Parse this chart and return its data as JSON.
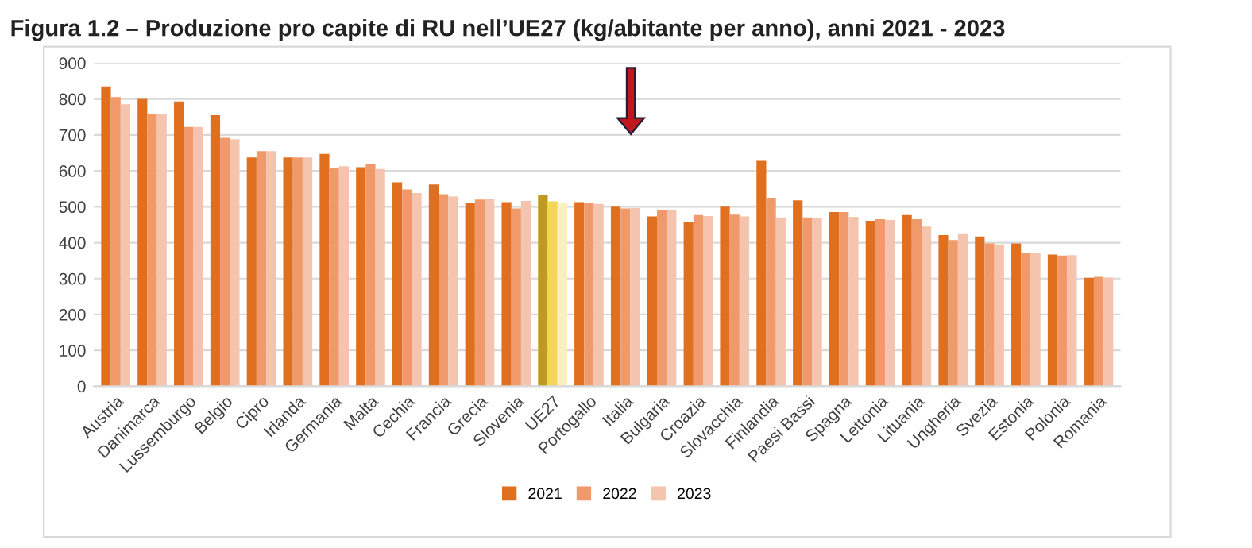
{
  "chart_data": {
    "type": "bar",
    "title": "Figura 1.2 – Produzione pro capite di RU nell’UE27 (kg/abitante per anno), anni 2021 - 2023",
    "categories": [
      "Austria",
      "Danimarca",
      "Lussemburgo",
      "Belgio",
      "Cipro",
      "Irlanda",
      "Germania",
      "Malta",
      "Cechia",
      "Francia",
      "Grecia",
      "Slovenia",
      "UE27",
      "Portogallo",
      "Italia",
      "Bulgaria",
      "Croazia",
      "Slovacchia",
      "Finlandia",
      "Paesi Bassi",
      "Spagna",
      "Lettonia",
      "Lituania",
      "Ungheria",
      "Svezia",
      "Estonia",
      "Polonia",
      "Romania"
    ],
    "series": [
      {
        "name": "2021",
        "color": "#e0701f",
        "colors": [
          "#e0701f",
          "#e0701f",
          "#e0701f",
          "#e0701f",
          "#e0701f",
          "#e0701f",
          "#e0701f",
          "#e0701f",
          "#e0701f",
          "#e0701f",
          "#e0701f",
          "#e0701f",
          "#c09a1c",
          "#e0701f",
          "#e0701f",
          "#e0701f",
          "#e0701f",
          "#e0701f",
          "#e0701f",
          "#e0701f",
          "#e0701f",
          "#e0701f",
          "#e0701f",
          "#e0701f",
          "#e0701f",
          "#e0701f",
          "#e0701f",
          "#e0701f"
        ],
        "values": [
          835,
          800,
          793,
          755,
          637,
          637,
          647,
          610,
          568,
          562,
          510,
          513,
          532,
          513,
          500,
          473,
          458,
          500,
          628,
          518,
          485,
          461,
          477,
          421,
          417,
          398,
          367,
          302
        ]
      },
      {
        "name": "2022",
        "color": "#f09a6c",
        "colors": [
          "#f09a6c",
          "#f09a6c",
          "#f09a6c",
          "#f09a6c",
          "#f09a6c",
          "#f09a6c",
          "#f09a6c",
          "#f09a6c",
          "#f09a6c",
          "#f09a6c",
          "#f09a6c",
          "#f09a6c",
          "#f2d65a",
          "#f09a6c",
          "#f09a6c",
          "#f09a6c",
          "#f09a6c",
          "#f09a6c",
          "#f09a6c",
          "#f09a6c",
          "#f09a6c",
          "#f09a6c",
          "#f09a6c",
          "#f09a6c",
          "#f09a6c",
          "#f09a6c",
          "#f09a6c",
          "#f09a6c"
        ],
        "values": [
          805,
          758,
          722,
          692,
          655,
          637,
          608,
          618,
          548,
          535,
          520,
          495,
          515,
          510,
          495,
          490,
          477,
          478,
          525,
          470,
          485,
          465,
          465,
          407,
          398,
          372,
          364,
          305
        ]
      },
      {
        "name": "2023",
        "color": "#f4c4ae",
        "colors": [
          "#f4c4ae",
          "#f4c4ae",
          "#f4c4ae",
          "#f4c4ae",
          "#f4c4ae",
          "#f4c4ae",
          "#f4c4ae",
          "#f4c4ae",
          "#f4c4ae",
          "#f4c4ae",
          "#f4c4ae",
          "#f4c4ae",
          "#faefbf",
          "#f4c4ae",
          "#f4c4ae",
          "#f4c4ae",
          "#f4c4ae",
          "#f4c4ae",
          "#f4c4ae",
          "#f4c4ae",
          "#f4c4ae",
          "#f4c4ae",
          "#f4c4ae",
          "#f4c4ae",
          "#f4c4ae",
          "#f4c4ae",
          "#f4c4ae",
          "#f4c4ae"
        ],
        "values": [
          785,
          758,
          722,
          688,
          655,
          637,
          613,
          605,
          538,
          528,
          522,
          516,
          511,
          508,
          496,
          492,
          474,
          473,
          470,
          468,
          472,
          463,
          445,
          424,
          395,
          371,
          365,
          303
        ]
      }
    ],
    "ylim": [
      0,
      900
    ],
    "yticks": [
      0,
      100,
      200,
      300,
      400,
      500,
      600,
      700,
      800,
      900
    ],
    "grid": "y",
    "legend": "bottom"
  }
}
